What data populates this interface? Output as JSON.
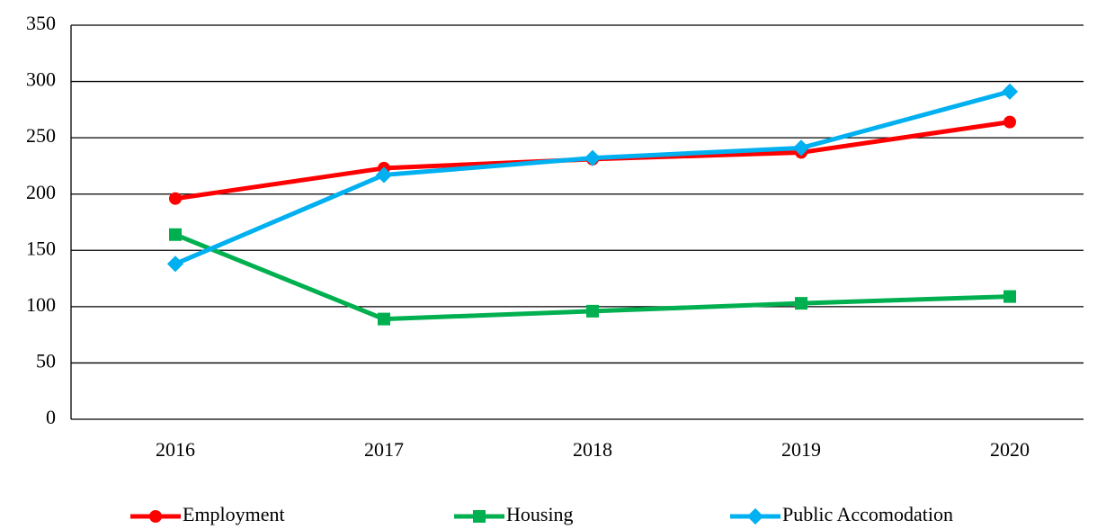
{
  "chart_data": {
    "type": "line",
    "categories": [
      "2016",
      "2017",
      "2018",
      "2019",
      "2020"
    ],
    "series": [
      {
        "name": "Employment",
        "color": "#ff0000",
        "marker": "circle",
        "values": [
          196,
          223,
          231,
          237,
          264
        ]
      },
      {
        "name": "Housing",
        "color": "#00b050",
        "marker": "square",
        "values": [
          164,
          89,
          96,
          103,
          109
        ]
      },
      {
        "name": "Public Accomodation",
        "color": "#00b0f0",
        "marker": "diamond",
        "values": [
          138,
          217,
          232,
          241,
          291
        ]
      }
    ],
    "ylim": [
      0,
      350
    ],
    "yticks": [
      0,
      50,
      100,
      150,
      200,
      250,
      300,
      350
    ],
    "grid": true,
    "legend": "bottom"
  }
}
